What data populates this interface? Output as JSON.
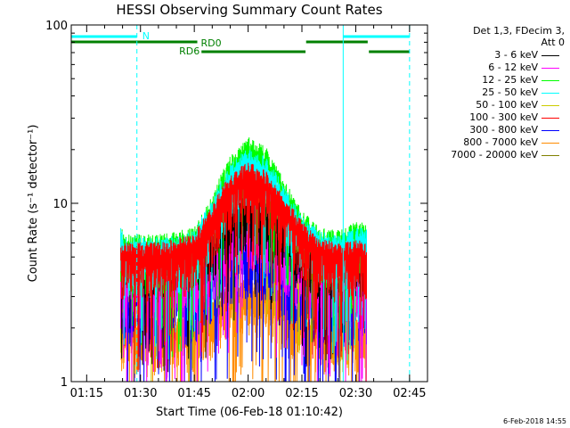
{
  "chart_data": {
    "type": "line",
    "title": "HESSI Observing Summary Count Rates",
    "xlabel": "Start Time (06-Feb-18 01:10:42)",
    "ylabel": "Count Rate (s⁻¹ detector⁻¹)",
    "yscale": "log",
    "ylim": [
      1,
      100
    ],
    "y_ticks": [
      "1",
      "10",
      "100"
    ],
    "x_ticks": [
      "01:15",
      "01:30",
      "01:45",
      "02:00",
      "02:15",
      "02:30",
      "02:45"
    ],
    "xlim": [
      "01:10:42",
      "02:50:00"
    ],
    "data_start": "01:24:30",
    "data_end": "02:33:00",
    "legend_header": [
      "Det 1,3, FDecim 3,",
      "Att 0"
    ],
    "series": [
      {
        "name": "3 - 6 keV",
        "color": "#000000",
        "x": [
          "01:25",
          "01:35",
          "01:45",
          "01:50",
          "01:55",
          "02:00",
          "02:05",
          "02:10",
          "02:15",
          "02:20",
          "02:25",
          "02:30",
          "02:33"
        ],
        "values": [
          5.0,
          5.0,
          5.2,
          6.5,
          8.5,
          9.5,
          8.8,
          7.0,
          5.5,
          5.0,
          5.0,
          5.2,
          5.0
        ]
      },
      {
        "name": "6 - 12 keV",
        "color": "#ff00ff",
        "x": [
          "01:25",
          "01:35",
          "01:45",
          "01:50",
          "01:55",
          "02:00",
          "02:05",
          "02:10",
          "02:15",
          "02:20",
          "02:25",
          "02:30",
          "02:33"
        ],
        "values": [
          3.5,
          3.5,
          3.6,
          4.8,
          6.5,
          7.5,
          7.0,
          5.5,
          4.2,
          3.6,
          3.5,
          3.6,
          3.5
        ]
      },
      {
        "name": "12 - 25 keV",
        "color": "#00ff00",
        "x": [
          "01:25",
          "01:35",
          "01:45",
          "01:50",
          "01:55",
          "02:00",
          "02:05",
          "02:10",
          "02:15",
          "02:20",
          "02:25",
          "02:30",
          "02:33"
        ],
        "values": [
          5.5,
          5.5,
          6.0,
          9.0,
          15.0,
          19.5,
          17.0,
          11.0,
          7.5,
          6.0,
          5.8,
          6.5,
          6.5
        ]
      },
      {
        "name": "25 - 50 keV",
        "color": "#00ffff",
        "x": [
          "01:25",
          "01:35",
          "01:45",
          "01:50",
          "01:55",
          "02:00",
          "02:05",
          "02:10",
          "02:15",
          "02:20",
          "02:25",
          "02:30",
          "02:33"
        ],
        "values": [
          5.3,
          5.3,
          5.8,
          8.5,
          13.5,
          17.0,
          15.0,
          10.0,
          7.0,
          5.7,
          5.5,
          6.0,
          6.0
        ]
      },
      {
        "name": "50 - 100 keV",
        "color": "#cccc00",
        "x": [
          "01:25",
          "01:35",
          "01:45",
          "01:50",
          "01:55",
          "02:00",
          "02:05",
          "02:10",
          "02:15",
          "02:20",
          "02:25",
          "02:30",
          "02:33"
        ],
        "values": [
          4.0,
          4.0,
          4.3,
          6.0,
          9.0,
          10.5,
          9.5,
          7.0,
          5.2,
          4.3,
          4.1,
          4.3,
          4.0
        ]
      },
      {
        "name": "100 - 300 keV",
        "color": "#ff0000",
        "x": [
          "01:25",
          "01:35",
          "01:45",
          "01:50",
          "01:55",
          "02:00",
          "02:05",
          "02:10",
          "02:15",
          "02:20",
          "02:25",
          "02:30",
          "02:33"
        ],
        "values": [
          5.0,
          5.0,
          5.5,
          8.0,
          12.0,
          14.0,
          12.5,
          9.0,
          6.5,
          5.2,
          5.0,
          5.2,
          5.0
        ]
      },
      {
        "name": "300 - 800 keV",
        "color": "#0000ff",
        "x": [
          "01:25",
          "01:35",
          "01:45",
          "01:50",
          "01:55",
          "02:00",
          "02:05",
          "02:10",
          "02:15",
          "02:20",
          "02:25",
          "02:30",
          "02:33"
        ],
        "values": [
          2.8,
          2.8,
          2.9,
          3.8,
          4.8,
          5.3,
          5.0,
          4.0,
          3.2,
          2.9,
          2.8,
          2.8,
          2.8
        ]
      },
      {
        "name": "800 - 7000 keV",
        "color": "#ff8c00",
        "x": [
          "01:25",
          "01:35",
          "01:45",
          "01:50",
          "01:55",
          "02:00",
          "02:05",
          "02:10",
          "02:15",
          "02:20",
          "02:25",
          "02:30",
          "02:33"
        ],
        "values": [
          1.9,
          1.9,
          2.0,
          2.4,
          2.9,
          3.2,
          3.0,
          2.6,
          2.1,
          2.0,
          1.9,
          1.9,
          1.9
        ]
      },
      {
        "name": "7000 - 20000 keV",
        "color": "#808000",
        "x": [],
        "values": []
      }
    ],
    "annotations": [
      {
        "label": "N",
        "color": "#00ffff",
        "spans": [
          [
            "01:10:42",
            "01:29:00"
          ],
          [
            "02:26:30",
            "02:45:00"
          ]
        ]
      },
      {
        "label": "RD0",
        "color": "#008000",
        "spans": [
          [
            "01:10:42",
            "01:45:50"
          ],
          [
            "02:16:10",
            "02:33:20"
          ]
        ]
      },
      {
        "label": "RD6",
        "color": "#008000",
        "spans": [
          [
            "01:47:00",
            "02:16:00"
          ],
          [
            "02:33:40",
            "02:45:00"
          ]
        ]
      }
    ],
    "vertical_markers": [
      {
        "color": "#00ffff",
        "style": "dashed",
        "x": "01:29:00"
      },
      {
        "color": "#00ffff",
        "style": "solid",
        "x": "02:26:30"
      },
      {
        "color": "#00ffff",
        "style": "dashed",
        "x": "02:45:00"
      }
    ]
  },
  "footer": {
    "timestamp": "6-Feb-2018 14:55"
  }
}
